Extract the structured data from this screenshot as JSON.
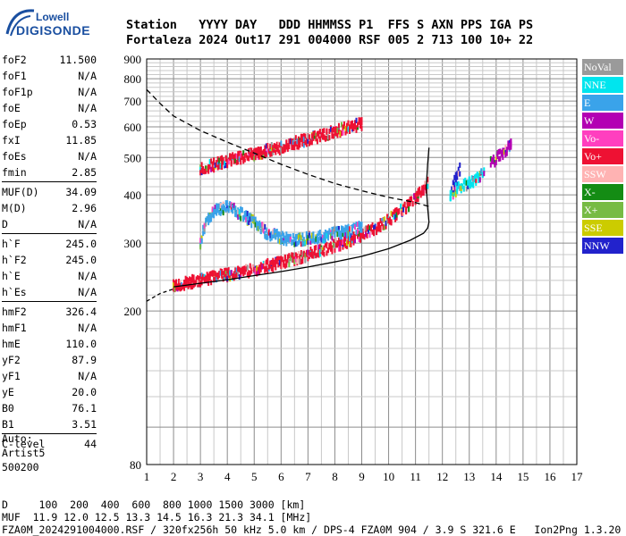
{
  "logo": {
    "line1": "Lowell",
    "line2": "DIGISONDE"
  },
  "header": {
    "line1": "Station   YYYY DAY   DDD HHMMSS P1  FFS S AXN PPS IGA PS",
    "line2": "Fortaleza 2024 Out17 291 004000 RSF 005 2 713 100 10+ 22"
  },
  "params": [
    {
      "label": "foF2",
      "value": "11.500"
    },
    {
      "label": "foF1",
      "value": "N/A"
    },
    {
      "label": "foF1p",
      "value": "N/A"
    },
    {
      "label": "foE",
      "value": "N/A"
    },
    {
      "label": "foEp",
      "value": "0.53"
    },
    {
      "label": "fxI",
      "value": "11.85"
    },
    {
      "label": "foEs",
      "value": "N/A"
    },
    {
      "label": "fmin",
      "value": "2.85"
    },
    {
      "label": "MUF(D)",
      "value": "34.09",
      "sep": true
    },
    {
      "label": "M(D)",
      "value": "2.96"
    },
    {
      "label": "D",
      "value": "N/A"
    },
    {
      "label": "h`F",
      "value": "245.0",
      "sep": true
    },
    {
      "label": "h`F2",
      "value": "245.0"
    },
    {
      "label": "h`E",
      "value": "N/A"
    },
    {
      "label": "h`Es",
      "value": "N/A"
    },
    {
      "label": "hmF2",
      "value": "326.4",
      "sep": true
    },
    {
      "label": "hmF1",
      "value": "N/A"
    },
    {
      "label": "hmE",
      "value": "110.0"
    },
    {
      "label": "yF2",
      "value": "87.9"
    },
    {
      "label": "yF1",
      "value": "N/A"
    },
    {
      "label": "yE",
      "value": "20.0"
    },
    {
      "label": "B0",
      "value": "76.1"
    },
    {
      "label": "B1",
      "value": "3.51"
    },
    {
      "label": "C-level",
      "value": "44",
      "sep": true
    }
  ],
  "auto": {
    "line1": "Auto:",
    "line2": "Artist5",
    "line3": "500200"
  },
  "bottom": {
    "line1": "D     100  200  400  600  800 1000 1500 3000 [km]",
    "line2": "MUF  11.9 12.0 12.5 13.3 14.5 16.3 21.3 34.1 [MHz]",
    "line3": "FZA0M_2024291004000.RSF / 320fx256h 50 kHz 5.0 km / DPS-4 FZA0M 904 / 3.9 S 321.6 E   Ion2Png 1.3.20"
  },
  "legend": [
    {
      "label": "NoVal",
      "color": "#9a9a9a"
    },
    {
      "label": "NNE",
      "color": "#00e5ee"
    },
    {
      "label": "E",
      "color": "#3aa3ea"
    },
    {
      "label": "W",
      "color": "#b300b3"
    },
    {
      "label": "Vo-",
      "color": "#ff3fbf"
    },
    {
      "label": "Vo+",
      "color": "#ee1133"
    },
    {
      "label": "SSW",
      "color": "#ffb3b3"
    },
    {
      "label": "X-",
      "color": "#148c14"
    },
    {
      "label": "X+",
      "color": "#77bb44"
    },
    {
      "label": "SSE",
      "color": "#cccc00"
    },
    {
      "label": "NNW",
      "color": "#2222cc"
    }
  ],
  "chart_data": {
    "type": "scatter",
    "title": "",
    "xlabel": "",
    "ylabel": "",
    "xlim": [
      1,
      17
    ],
    "ylim": [
      80,
      900
    ],
    "yscale": "log",
    "grid": true,
    "xticks": [
      1,
      2,
      3,
      4,
      5,
      6,
      7,
      8,
      9,
      10,
      11,
      12,
      13,
      14,
      15,
      16,
      17
    ],
    "yticks": [
      80,
      200,
      300,
      400,
      500,
      600,
      700,
      800,
      900
    ],
    "series": [
      {
        "kind": "trace",
        "color": "#ee1133",
        "points": [
          [
            2.0,
            231
          ],
          [
            2.5,
            237
          ],
          [
            3.0,
            240
          ],
          [
            3.5,
            245
          ],
          [
            4.0,
            248
          ],
          [
            4.5,
            252
          ],
          [
            5.0,
            256
          ],
          [
            5.5,
            262
          ],
          [
            6.0,
            267
          ],
          [
            6.5,
            273
          ],
          [
            7.0,
            280
          ],
          [
            7.5,
            287
          ],
          [
            8.0,
            295
          ],
          [
            8.5,
            304
          ],
          [
            9.0,
            315
          ],
          [
            9.5,
            328
          ],
          [
            10.0,
            344
          ],
          [
            10.3,
            356
          ],
          [
            10.6,
            370
          ],
          [
            10.9,
            386
          ],
          [
            11.2,
            405
          ],
          [
            11.4,
            422
          ],
          [
            11.5,
            432
          ]
        ]
      },
      {
        "kind": "trace",
        "color": "#ee1133",
        "points": [
          [
            3.0,
            467
          ],
          [
            3.5,
            478
          ],
          [
            4.0,
            490
          ],
          [
            4.5,
            500
          ],
          [
            5.0,
            510
          ],
          [
            5.5,
            521
          ],
          [
            6.0,
            531
          ],
          [
            6.5,
            545
          ],
          [
            7.0,
            556
          ],
          [
            7.5,
            570
          ],
          [
            8.0,
            584
          ],
          [
            8.5,
            597
          ],
          [
            9.0,
            612
          ]
        ]
      },
      {
        "kind": "trace",
        "color": "#3aa3ea",
        "points": [
          [
            3.0,
            300
          ],
          [
            3.2,
            340
          ],
          [
            3.5,
            362
          ],
          [
            4.0,
            372
          ],
          [
            4.5,
            358
          ],
          [
            5.0,
            338
          ],
          [
            5.5,
            318
          ],
          [
            6.0,
            310
          ],
          [
            6.5,
            305
          ],
          [
            7.0,
            308
          ],
          [
            7.5,
            312
          ],
          [
            8.0,
            318
          ],
          [
            8.5,
            322
          ],
          [
            9.0,
            330
          ]
        ]
      },
      {
        "kind": "trace",
        "color": "#00e5ee",
        "points": [
          [
            12.3,
            400
          ],
          [
            12.5,
            412
          ],
          [
            12.8,
            422
          ],
          [
            13.1,
            432
          ],
          [
            13.4,
            446
          ],
          [
            13.6,
            455
          ]
        ]
      },
      {
        "kind": "trace",
        "color": "#b300b3",
        "points": [
          [
            13.8,
            482
          ],
          [
            14.0,
            496
          ],
          [
            14.2,
            510
          ],
          [
            14.4,
            526
          ],
          [
            14.6,
            545
          ]
        ]
      },
      {
        "kind": "trace",
        "color": "#2222cc",
        "points": [
          [
            12.4,
            420
          ],
          [
            12.5,
            442
          ],
          [
            12.6,
            460
          ],
          [
            12.7,
            470
          ]
        ]
      },
      {
        "kind": "profile",
        "color": "#000000",
        "points": [
          [
            2.0,
            231
          ],
          [
            3.0,
            236
          ],
          [
            4.0,
            241
          ],
          [
            5.0,
            247
          ],
          [
            6.0,
            253
          ],
          [
            7.0,
            260
          ],
          [
            8.0,
            268
          ],
          [
            9.0,
            277
          ],
          [
            10.0,
            290
          ],
          [
            10.8,
            305
          ],
          [
            11.3,
            318
          ],
          [
            11.45,
            328
          ],
          [
            11.5,
            340
          ],
          [
            11.45,
            370
          ],
          [
            11.4,
            420
          ],
          [
            11.45,
            480
          ],
          [
            11.5,
            530
          ]
        ]
      },
      {
        "kind": "muf",
        "color": "#000000",
        "points": [
          [
            1.0,
            750
          ],
          [
            1.5,
            690
          ],
          [
            2.0,
            640
          ],
          [
            3.0,
            587
          ],
          [
            4.0,
            548
          ],
          [
            5.0,
            513
          ],
          [
            6.0,
            480
          ],
          [
            7.0,
            452
          ],
          [
            8.0,
            428
          ],
          [
            9.0,
            410
          ],
          [
            10.0,
            394
          ],
          [
            11.0,
            382
          ],
          [
            11.5,
            373
          ]
        ]
      },
      {
        "kind": "baseline",
        "color": "#000000",
        "points": [
          [
            1.0,
            212
          ],
          [
            1.5,
            222
          ],
          [
            2.0,
            228
          ]
        ]
      }
    ]
  }
}
